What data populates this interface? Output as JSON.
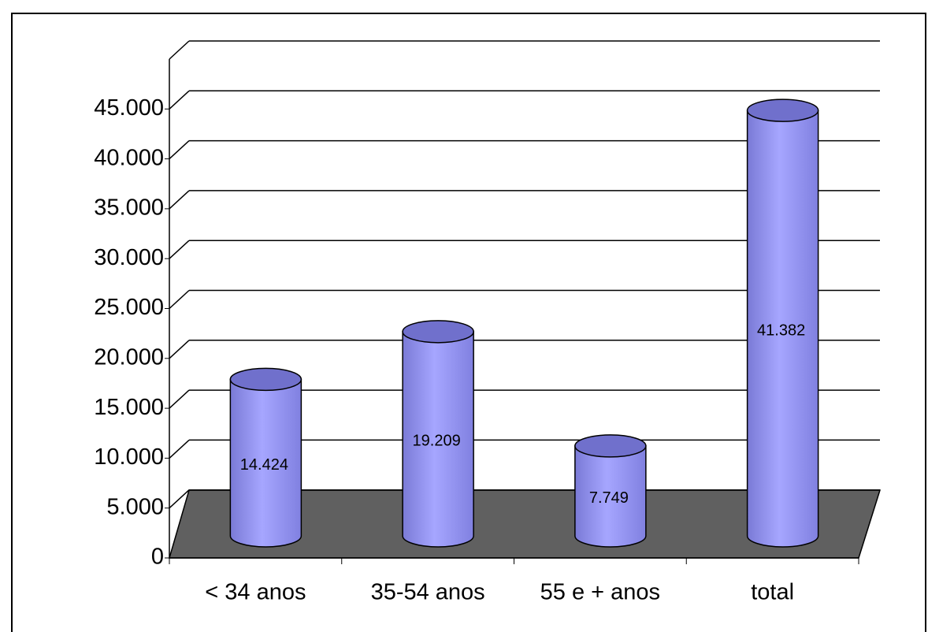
{
  "chart_data": {
    "type": "bar3d",
    "categories": [
      "< 34 anos",
      "35-54 anos",
      "55 e + anos",
      "total"
    ],
    "values": [
      14424,
      19209,
      7749,
      41382
    ],
    "value_labels": [
      "14.424",
      "19.209",
      "7.749",
      "41.382"
    ],
    "color": "#9999ff",
    "ylim": [
      0,
      50000
    ],
    "yticks": [
      0,
      {
        "value": 5000,
        "label": "5.000"
      },
      {
        "value": 10000,
        "label": "10.000"
      },
      {
        "value": 15000,
        "label": "15.000"
      },
      {
        "value": 20000,
        "label": "20.000"
      },
      {
        "value": 25000,
        "label": "25.000"
      },
      {
        "value": 30000,
        "label": "30.000"
      },
      {
        "value": 35000,
        "label": "35.000"
      },
      {
        "value": 40000,
        "label": "40.000"
      },
      {
        "value": 45000,
        "label": "45.000"
      }
    ],
    "grid": true
  }
}
